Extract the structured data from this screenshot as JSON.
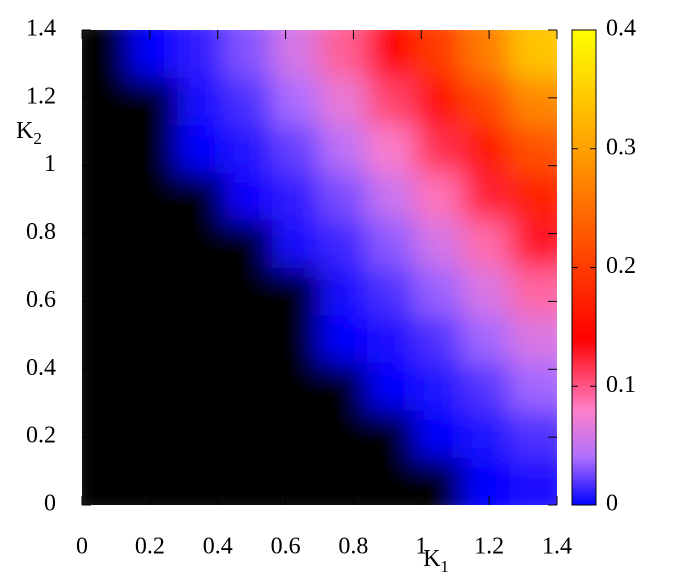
{
  "chart_data": {
    "type": "heatmap",
    "x_label": "K",
    "x_label_sub": "1",
    "y_label": "K",
    "y_label_sub": "2",
    "x": [
      0.07,
      0.21,
      0.35,
      0.49,
      0.63,
      0.77,
      0.91,
      1.05,
      1.19,
      1.33
    ],
    "y": [
      0.07,
      0.21,
      0.35,
      0.49,
      0.63,
      0.77,
      0.91,
      1.05,
      1.19,
      1.33
    ],
    "z": [
      [
        0,
        0,
        0,
        0,
        0,
        0,
        0,
        0,
        0.001,
        0.006
      ],
      [
        0,
        0,
        0,
        0,
        0,
        0,
        0,
        0.001,
        0.007,
        0.018
      ],
      [
        0,
        0,
        0,
        0,
        0,
        0,
        0.001,
        0.007,
        0.019,
        0.037
      ],
      [
        0,
        0,
        0,
        0,
        0,
        0.001,
        0.006,
        0.018,
        0.037,
        0.061
      ],
      [
        0,
        0,
        0,
        0,
        0,
        0.005,
        0.017,
        0.035,
        0.06,
        0.092
      ],
      [
        0,
        0,
        0,
        0,
        0.004,
        0.014,
        0.032,
        0.057,
        0.089,
        0.129
      ],
      [
        0,
        0,
        0,
        0.002,
        0.011,
        0.028,
        0.052,
        0.085,
        0.124,
        0.172
      ],
      [
        0,
        0,
        0.001,
        0.008,
        0.023,
        0.046,
        0.078,
        0.117,
        0.165,
        0.221
      ],
      [
        0,
        0,
        0.004,
        0.017,
        0.039,
        0.069,
        0.108,
        0.155,
        0.211,
        0.276
      ],
      [
        0,
        0.001,
        0.011,
        0.03,
        0.059,
        0.096,
        0.143,
        0.199,
        0.264,
        0.338
      ]
    ],
    "xlim": [
      0,
      1.4
    ],
    "xticks": [
      0,
      0.2,
      0.4,
      0.6,
      0.8,
      1,
      1.2,
      1.4
    ],
    "ylim": [
      0,
      1.4
    ],
    "yticks": [
      0,
      0.2,
      0.4,
      0.6,
      0.8,
      1,
      1.2,
      1.4
    ],
    "clim": [
      0,
      0.4
    ],
    "cticks": [
      0,
      0.1,
      0.2,
      0.3,
      0.4
    ],
    "zero_color": "#000000",
    "colormap": [
      [
        0,
        "#0000ff"
      ],
      [
        0.04,
        "#b070ff"
      ],
      [
        0.08,
        "#ff80c8"
      ],
      [
        0.14,
        "#ff0000"
      ],
      [
        0.3,
        "#ffa000"
      ],
      [
        0.4,
        "#ffff00"
      ]
    ]
  }
}
